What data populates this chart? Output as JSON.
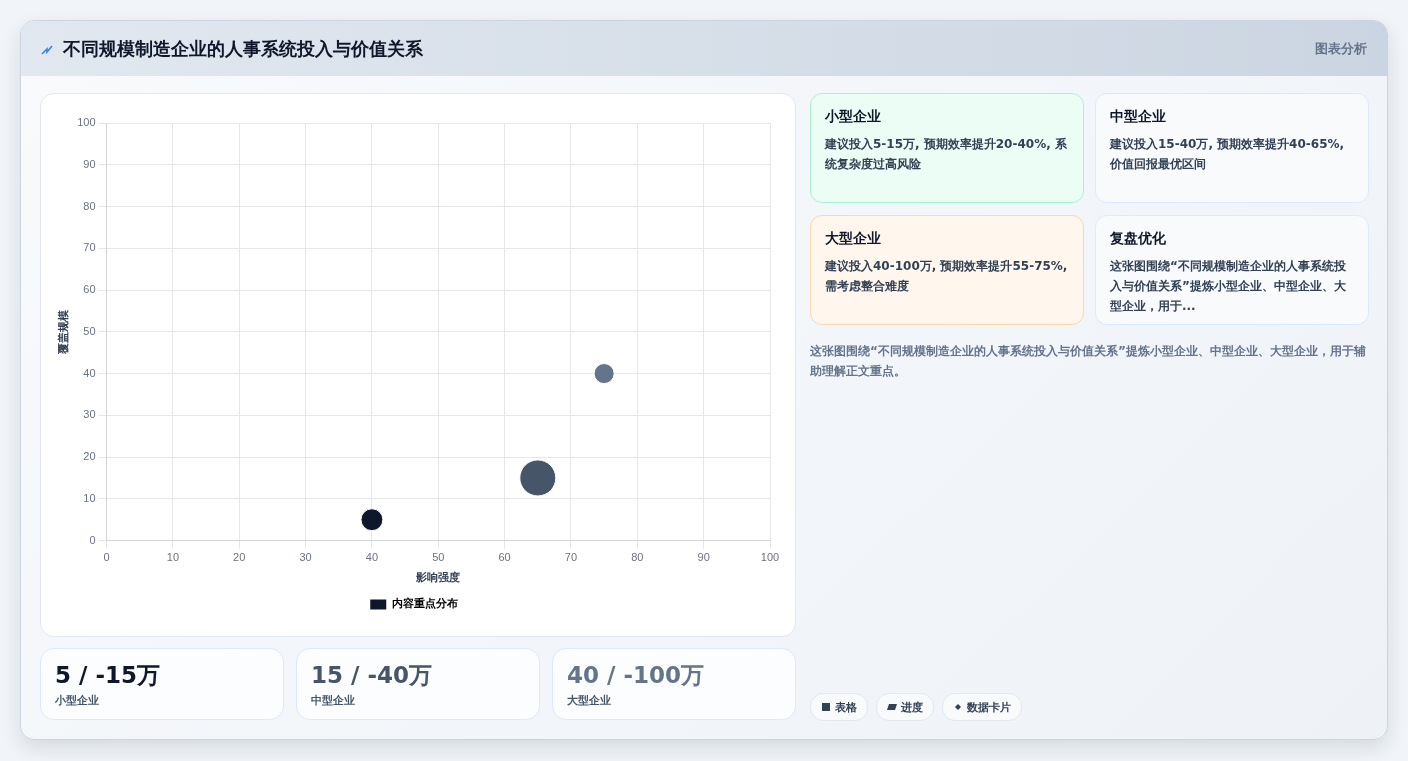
{
  "chart_data": [
    {
      "type": "bubble",
      "title": "不同规模制造企业的人事系统投入与价值关系",
      "xlabel": "影响强度",
      "ylabel": "覆盖规模",
      "xlim": [
        0,
        100
      ],
      "xticks": [
        0,
        10,
        20,
        30,
        40,
        50,
        60,
        70,
        80,
        90,
        100
      ],
      "ylim": [
        0,
        100
      ],
      "yticks": [
        0,
        10,
        20,
        30,
        40,
        50,
        60,
        70,
        80,
        90,
        100
      ],
      "grid": true,
      "legend": "bottom",
      "series": [
        {
          "name": "内容重点分布",
          "color": "#0f172a",
          "colors": [
            "#0f172a",
            "#475569",
            "#64748b"
          ],
          "x": [
            40,
            65,
            75
          ],
          "values": [
            5,
            15,
            40
          ],
          "sizes": [
            0.37,
            1,
            0.31
          ]
        }
      ]
    },
    {
      "type": "other",
      "annotations": [
        "小型企业",
        "建议投入5-15万, 预期效率提升20-40%, 系统复杂度过高风险",
        "中型企业",
        "建议投入15-40万, 预期效率提升40-65%, 价值回报最优区间",
        "大型企业",
        "建议投入40-100万, 预期效率提升55-75%, 需考虑整合难度",
        "复盘优化",
        "这张图围绕“不同规模制造企业的人事系统投入与价值关系”提炼小型企业、中型企业、大型企业，用于...",
        "这张图围绕“不同规模制造企业的人事系统投入与价值关系”提炼小型企业、中型企业、大型企业，用于辅助理解正文重点。",
        "5 / -15万",
        "小型企业",
        "15 / -40万",
        "中型企业",
        "40 / -100万",
        "大型企业",
        "表格",
        "进度",
        "数据卡片",
        "图表分析"
      ]
    }
  ]
}
